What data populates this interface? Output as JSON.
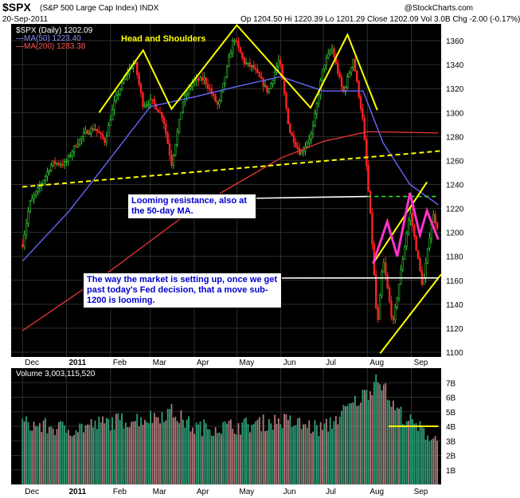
{
  "header": {
    "title": "$SPX",
    "subtitle": "(S&P 500 Large Cap Index)  INDX",
    "watermark": "@StockCharts.com",
    "date": "20-Sep-2011",
    "ohlc": "Op 1204.50  Hi 1220.39  Lo 1201.29  Close 1202.09  Vol 3.0B  Chg -2.00 (-0.17%)"
  },
  "colors": {
    "background": "#000000",
    "up": "#33cc33",
    "down": "#ff2222",
    "ma50": "#6666ff",
    "ma200": "#dd3333",
    "volume_up": "#2ea079",
    "volume_down": "#b07a7a",
    "annotation": "#ffff00",
    "peaks": "#ff33cc",
    "resistance": "#33dd33"
  },
  "annotations": {
    "head_shoulders": "Head and Shoulders",
    "looming_resistance": "Looming resistance, also at the 50-day MA.",
    "setup_note": "The way the market is setting up, once we get past today's Fed decision, that a move sub-1200 is looming."
  },
  "chart_data": [
    {
      "type": "candlestick",
      "title": "$SPX (Daily) 1202.09",
      "legend": [
        {
          "name": "$SPX (Daily)",
          "value": "1202.09"
        },
        {
          "name": "MA(50)",
          "value": "1223.40"
        },
        {
          "name": "MA(200)",
          "value": "1283.38"
        }
      ],
      "x_tick_labels": [
        "Dec",
        "2011",
        "Feb",
        "Mar",
        "Apr",
        "May",
        "Jun",
        "Jul",
        "Aug",
        "Sep"
      ],
      "y_tick_labels": [
        "1100",
        "1120",
        "1140",
        "1160",
        "1180",
        "1200",
        "1220",
        "1240",
        "1260",
        "1280",
        "1300",
        "1320",
        "1340",
        "1360"
      ],
      "ylim": [
        1096,
        1374
      ],
      "price_path": [
        [
          "2010-12-01",
          1190
        ],
        [
          "2010-12-06",
          1224
        ],
        [
          "2010-12-14",
          1240
        ],
        [
          "2010-12-22",
          1258
        ],
        [
          "2010-12-31",
          1257
        ],
        [
          "2011-01-07",
          1272
        ],
        [
          "2011-01-14",
          1283
        ],
        [
          "2011-01-21",
          1287
        ],
        [
          "2011-01-28",
          1276
        ],
        [
          "2011-02-04",
          1310
        ],
        [
          "2011-02-11",
          1329
        ],
        [
          "2011-02-18",
          1343
        ],
        [
          "2011-02-24",
          1306
        ],
        [
          "2011-03-02",
          1310
        ],
        [
          "2011-03-10",
          1296
        ],
        [
          "2011-03-16",
          1257
        ],
        [
          "2011-03-24",
          1309
        ],
        [
          "2011-03-31",
          1326
        ],
        [
          "2011-04-08",
          1328
        ],
        [
          "2011-04-18",
          1305
        ],
        [
          "2011-04-29",
          1363
        ],
        [
          "2011-05-06",
          1342
        ],
        [
          "2011-05-13",
          1337
        ],
        [
          "2011-05-23",
          1317
        ],
        [
          "2011-05-31",
          1345
        ],
        [
          "2011-06-07",
          1285
        ],
        [
          "2011-06-15",
          1265
        ],
        [
          "2011-06-23",
          1283
        ],
        [
          "2011-07-01",
          1339
        ],
        [
          "2011-07-07",
          1354
        ],
        [
          "2011-07-15",
          1316
        ],
        [
          "2011-07-22",
          1345
        ],
        [
          "2011-07-29",
          1292
        ],
        [
          "2011-08-04",
          1200
        ],
        [
          "2011-08-08",
          1119
        ],
        [
          "2011-08-12",
          1178
        ],
        [
          "2011-08-19",
          1123
        ],
        [
          "2011-08-31",
          1218
        ],
        [
          "2011-09-09",
          1154
        ],
        [
          "2011-09-16",
          1216
        ],
        [
          "2011-09-20",
          1202
        ]
      ],
      "ma50_path": [
        [
          "2010-12-01",
          1176
        ],
        [
          "2011-01-03",
          1218
        ],
        [
          "2011-02-01",
          1262
        ],
        [
          "2011-03-01",
          1305
        ],
        [
          "2011-04-01",
          1313
        ],
        [
          "2011-05-02",
          1322
        ],
        [
          "2011-06-01",
          1330
        ],
        [
          "2011-07-01",
          1318
        ],
        [
          "2011-07-29",
          1318
        ],
        [
          "2011-08-12",
          1275
        ],
        [
          "2011-08-31",
          1240
        ],
        [
          "2011-09-20",
          1223
        ]
      ],
      "ma200_path": [
        [
          "2010-12-01",
          1118
        ],
        [
          "2011-02-01",
          1168
        ],
        [
          "2011-04-01",
          1220
        ],
        [
          "2011-06-01",
          1262
        ],
        [
          "2011-07-01",
          1276
        ],
        [
          "2011-08-01",
          1284
        ],
        [
          "2011-09-20",
          1283
        ]
      ],
      "support_line": [
        [
          "2010-12-01",
          1238
        ],
        [
          "2011-09-22",
          1268
        ]
      ],
      "resistance_level": 1230
    },
    {
      "type": "bar",
      "title": "Volume 3,003,115,520",
      "y_tick_labels": [
        "1B",
        "2B",
        "3B",
        "4B",
        "5B",
        "6B",
        "7B"
      ],
      "ylim": [
        0,
        8
      ],
      "series": [
        {
          "name": "Volume",
          "points": [
            [
              "2010-12-01",
              4.2
            ],
            [
              "2010-12-15",
              4.0
            ],
            [
              "2011-01-03",
              3.8
            ],
            [
              "2011-02-01",
              4.3
            ],
            [
              "2011-03-01",
              4.6
            ],
            [
              "2011-03-16",
              5.0
            ],
            [
              "2011-04-01",
              3.9
            ],
            [
              "2011-05-02",
              4.0
            ],
            [
              "2011-06-01",
              4.4
            ],
            [
              "2011-07-01",
              3.8
            ],
            [
              "2011-08-04",
              6.6
            ],
            [
              "2011-08-08",
              7.7
            ],
            [
              "2011-08-10",
              7.2
            ],
            [
              "2011-08-19",
              5.4
            ],
            [
              "2011-09-01",
              4.2
            ],
            [
              "2011-09-20",
              3.0
            ]
          ]
        }
      ],
      "reference_level": 4.0
    }
  ]
}
